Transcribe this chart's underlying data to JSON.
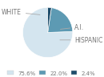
{
  "labels": [
    "WHITE",
    "HISPANIC",
    "A.I."
  ],
  "values": [
    75.6,
    22.0,
    2.4
  ],
  "colors": [
    "#d4e5ef",
    "#5d9ab3",
    "#1e4d6b"
  ],
  "legend_labels": [
    "75.6%",
    "22.0%",
    "2.4%"
  ],
  "startangle": 90,
  "background_color": "#ffffff",
  "label_color": "#777777",
  "line_color": "#aaaaaa",
  "font_size": 5.5,
  "legend_font_size": 5.0
}
